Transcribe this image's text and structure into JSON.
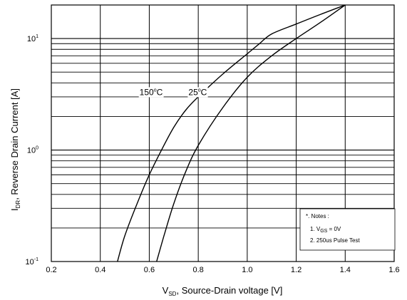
{
  "chart_data": {
    "type": "line",
    "title": "",
    "x_scale": "linear",
    "y_scale": "log",
    "xlim": [
      0.2,
      1.6
    ],
    "ylim": [
      0.1,
      20
    ],
    "x_ticks": [
      0.2,
      0.4,
      0.6,
      0.8,
      1.0,
      1.2,
      1.4,
      1.6
    ],
    "x_tick_labels": [
      "0.2",
      "0.4",
      "0.6",
      "0.8",
      "1.0",
      "1.2",
      "1.4",
      "1.6"
    ],
    "y_tick_labels": [
      {
        "value": 0.1,
        "base": "10",
        "exp": "-1"
      },
      {
        "value": 1,
        "base": "10",
        "exp": "0"
      },
      {
        "value": 10,
        "base": "10",
        "exp": "1"
      }
    ],
    "xlabel": {
      "main": "V",
      "sub": "SD",
      "rest": ", Source-Drain voltage [V]"
    },
    "ylabel": {
      "main": "I",
      "sub": "DR",
      "rest": ", Reverse Drain Current [A]"
    },
    "grid": true,
    "series": [
      {
        "name": "150°C",
        "x": [
          0.47,
          0.5,
          0.55,
          0.6,
          0.65,
          0.7,
          0.75,
          0.8,
          0.9,
          1.0,
          1.05,
          1.1,
          1.2,
          1.3,
          1.4
        ],
        "y": [
          0.1,
          0.17,
          0.33,
          0.6,
          1.0,
          1.6,
          2.3,
          3.0,
          4.8,
          7.3,
          9.0,
          11.0,
          13.5,
          16.5,
          20
        ]
      },
      {
        "name": "25°C",
        "x": [
          0.63,
          0.66,
          0.7,
          0.75,
          0.8,
          0.9,
          1.0,
          1.1,
          1.2,
          1.3,
          1.4
        ],
        "y": [
          0.1,
          0.17,
          0.33,
          0.65,
          1.1,
          2.4,
          4.5,
          7.0,
          10.0,
          14.0,
          20
        ]
      }
    ],
    "curve_labels": [
      {
        "series": 0,
        "text": "150",
        "sup": "o",
        "unit": "C",
        "x": 0.56,
        "y": 3.3
      },
      {
        "series": 1,
        "text": "25",
        "sup": "o",
        "unit": "C",
        "x": 0.76,
        "y": 3.3
      }
    ],
    "notes": {
      "heading": "*. Notes :",
      "item1": {
        "prefix": "1. V",
        "sub": "GS",
        "rest": " = 0V"
      },
      "item2": "2. 250us Pulse Test"
    }
  }
}
